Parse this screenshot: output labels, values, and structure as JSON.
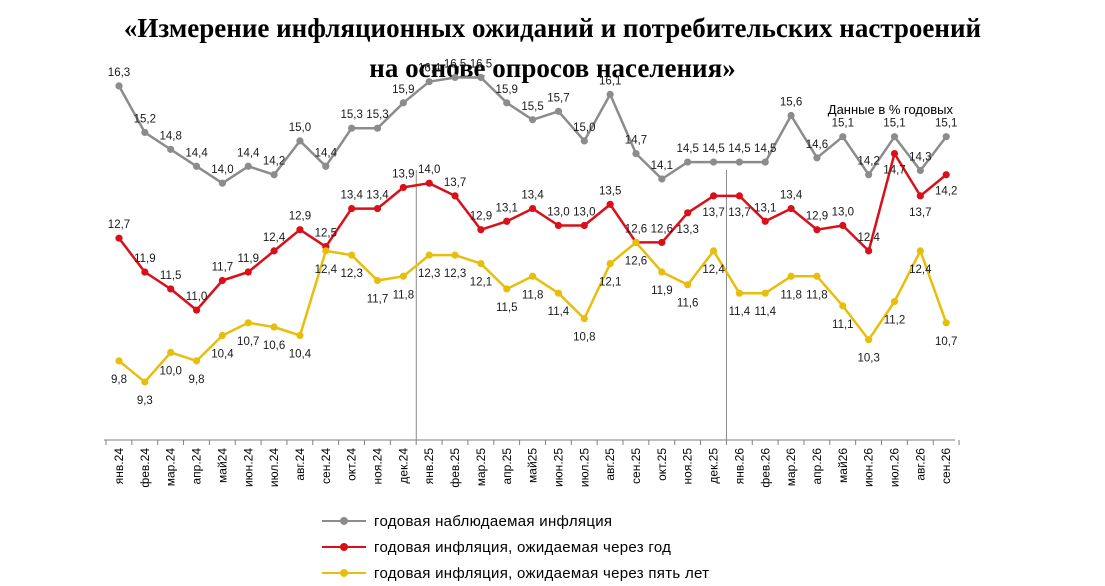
{
  "header": {
    "title_line1": "«Измерение инфляционных ожиданий и потребительских настроений",
    "title_line2": "на основе опросов населения»",
    "units": "Данные в % годовых"
  },
  "colors": {
    "observed": "#8c8c8c",
    "expected_1y": "#d9101a",
    "expected_5y": "#e8be0c",
    "axis": "#7f7f7f"
  },
  "chart_data": {
    "type": "line",
    "categories": [
      "янв.24",
      "фев.24",
      "мар.24",
      "апр.24",
      "май24",
      "июн.24",
      "июл.24",
      "авг.24",
      "сен.24",
      "окт.24",
      "ноя.24",
      "дек.24",
      "янв.25",
      "фев.25",
      "мар.25",
      "апр.25",
      "май25",
      "июн.25",
      "июл.25",
      "авг.25",
      "сен.25",
      "окт.25",
      "ноя.25",
      "дек.25",
      "янв.26",
      "фев.26",
      "мар.26",
      "апр.26",
      "май26",
      "июн.26",
      "июл.26",
      "авг.26",
      "сен.26"
    ],
    "series": [
      {
        "name": "годовая наблюдаемая  инфляция",
        "color_key": "observed",
        "values": [
          16.3,
          15.2,
          14.8,
          14.4,
          14.0,
          14.4,
          14.2,
          15.0,
          14.4,
          15.3,
          15.3,
          15.9,
          16.4,
          16.5,
          16.5,
          15.9,
          15.5,
          15.7,
          15.0,
          16.1,
          14.7,
          14.1,
          14.5,
          14.5,
          14.5,
          14.5,
          15.6,
          14.6,
          15.1,
          14.2,
          15.1,
          14.3,
          15.1
        ],
        "labels": [
          "16,3",
          "15,2",
          "14,8",
          "14,4",
          "14,0",
          "14,4",
          "14,2",
          "15,0",
          "14,4",
          "15,3",
          "15,3",
          "15,9",
          "16,4",
          "16,5",
          "16,5",
          "15,9",
          "15,5",
          "15,7",
          "15,0",
          "16,1",
          "14,7",
          "14,1",
          "14,5",
          "14,5",
          "14,5",
          "14,5",
          "15,6",
          "14,6",
          "15,1",
          "14,2",
          "15,1",
          "14,3",
          "15,1"
        ]
      },
      {
        "name": "годовая инфляция,  ожидаемая  через год",
        "color_key": "expected_1y",
        "values": [
          12.7,
          11.9,
          11.5,
          11.0,
          11.7,
          11.9,
          12.4,
          12.9,
          12.5,
          13.4,
          13.4,
          13.9,
          14.0,
          13.7,
          12.9,
          13.1,
          13.4,
          13.0,
          13.0,
          13.5,
          12.6,
          12.6,
          13.3,
          13.7,
          13.7,
          13.1,
          13.4,
          12.9,
          13.0,
          12.4,
          14.7,
          13.7,
          14.2
        ],
        "labels": [
          "12,7",
          "11,9",
          "11,5",
          "11,0",
          "11,7",
          "11,9",
          "12,4",
          "12,9",
          "12,5",
          "13,4",
          "13,4",
          "13,9",
          "14,0",
          "13,7",
          "12,9",
          "13,1",
          "13,4",
          "13,0",
          "13,0",
          "13,5",
          "12,6",
          "12,6",
          "13,3",
          "13,7",
          "13,7",
          "13,1",
          "13,4",
          "12,9",
          "13,0",
          "12,4",
          "14,7",
          "13,7",
          "14,2"
        ]
      },
      {
        "name": "годовая инфляция,  ожидаемая  через пять лет",
        "color_key": "expected_5y",
        "values": [
          9.8,
          9.3,
          10.0,
          9.8,
          10.4,
          10.7,
          10.6,
          10.4,
          12.4,
          12.3,
          11.7,
          11.8,
          12.3,
          12.3,
          12.1,
          11.5,
          11.8,
          11.4,
          10.8,
          12.1,
          12.6,
          11.9,
          11.6,
          12.4,
          11.4,
          11.4,
          11.8,
          11.8,
          11.1,
          10.3,
          11.2,
          12.4,
          10.7
        ],
        "labels": [
          "9,8",
          "9,3",
          "10,0",
          "9,8",
          "10,4",
          "10,7",
          "10,6",
          "10,4",
          "12,4",
          "12,3",
          "11,7",
          "11,8",
          "12,3",
          "12,3",
          "12,1",
          "11,5",
          "11,8",
          "11,4",
          "10,8",
          "12,1",
          "12,6",
          "11,9",
          "11,6",
          "12,4",
          "11,4",
          "11,4",
          "11,8",
          "11,8",
          "11,1",
          "10,3",
          "11,2",
          "12,4",
          "10,7"
        ]
      }
    ],
    "year_dividers_after": [
      "дек.24",
      "дек.25"
    ],
    "grid": false,
    "legend_position": "bottom"
  }
}
